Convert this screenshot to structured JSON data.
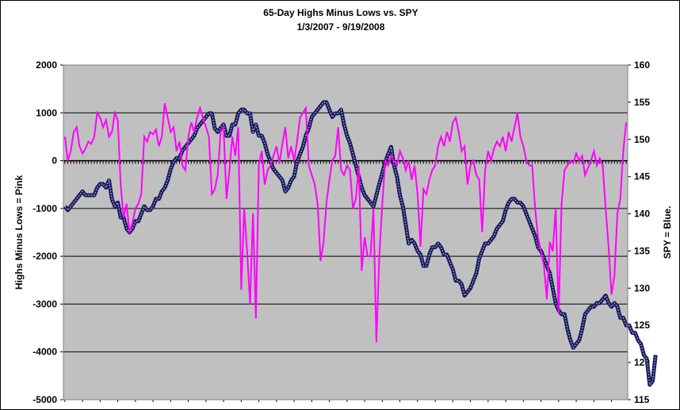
{
  "chart_data": {
    "type": "line",
    "title": "65-Day Highs Minus Lows vs. SPY",
    "subtitle": "1/3/2007 - 9/19/2008",
    "ylabel_left": "Highs Minus Lows = Pink",
    "ylabel_right": "SPY = Blue.",
    "ylim_left": [
      -5000,
      2000
    ],
    "ylim_right": [
      115,
      160
    ],
    "yticks_left": [
      "2000",
      "1000",
      "0",
      "-1000",
      "-2000",
      "-3000",
      "-4000",
      "-5000"
    ],
    "yticks_right": [
      "160",
      "155",
      "150",
      "145",
      "140",
      "135",
      "130",
      "125",
      "120",
      "115"
    ],
    "x_start": "1/3/2007",
    "x_end": "9/19/2008",
    "grid": true,
    "plot_background": "#c0c0c0",
    "series": [
      {
        "axis": "left",
        "color": "#ff00ff",
        "values": [
          500,
          0,
          200,
          600,
          700,
          300,
          150,
          250,
          400,
          350,
          500,
          1000,
          900,
          700,
          850,
          500,
          600,
          1000,
          850,
          -500,
          -1200,
          -900,
          -1500,
          -1300,
          -1000,
          -900,
          -700,
          500,
          400,
          600,
          550,
          650,
          300,
          500,
          1200,
          900,
          600,
          700,
          200,
          400,
          -100,
          -200,
          500,
          800,
          600,
          900,
          1100,
          900,
          700,
          500,
          -700,
          -600,
          -300,
          600,
          700,
          -800,
          -200,
          500,
          100,
          700,
          -2700,
          -1000,
          -1900,
          -3000,
          -1100,
          -3300,
          -100,
          200,
          -500,
          -200,
          -100,
          100,
          300,
          -50,
          350,
          700,
          50,
          300,
          0,
          400,
          900,
          1000,
          1100,
          -100,
          -300,
          -500,
          -900,
          -2100,
          -1700,
          -900,
          -400,
          0,
          100,
          700,
          -200,
          -300,
          -100,
          -200,
          -1000,
          -800,
          -100,
          -2300,
          -1600,
          -2000,
          -2000,
          -1000,
          -3800,
          -2000,
          -900,
          0,
          -100,
          100,
          0,
          -100,
          200,
          50,
          -200,
          0,
          -400,
          -100,
          -700,
          -1800,
          -600,
          -700,
          -400,
          -200,
          -100,
          300,
          500,
          300,
          600,
          400,
          800,
          900,
          600,
          200,
          300,
          -500,
          -100,
          0,
          -300,
          -400,
          -1500,
          -200,
          200,
          0,
          250,
          400,
          300,
          500,
          200,
          600,
          400,
          700,
          1000,
          500,
          300,
          0,
          -100,
          -100,
          -1000,
          -1600,
          -1900,
          -2200,
          -2900,
          -1700,
          -1900,
          -1000,
          -3200,
          -900,
          -200,
          -100,
          0,
          -50,
          150,
          0,
          100,
          -300,
          -150,
          0,
          200,
          -100,
          50,
          -100,
          -1000,
          -1800,
          -2800,
          -2400,
          -1100,
          -800,
          200,
          800
        ],
        "name": ""
      },
      {
        "axis": "right",
        "color": "#1a1a5e",
        "values": [
          141,
          140.5,
          141,
          141.5,
          142,
          142.5,
          143,
          142.5,
          142.5,
          142.5,
          142.5,
          143.5,
          144,
          144,
          143.5,
          144.5,
          142,
          141,
          141.5,
          139.5,
          139.5,
          138,
          137.5,
          138,
          139,
          139,
          140,
          141,
          140.5,
          140.5,
          141,
          142,
          142,
          143,
          143.5,
          144.5,
          146,
          147,
          147.5,
          147.5,
          148.5,
          149,
          149.5,
          150,
          150.5,
          151.5,
          152,
          152.5,
          153,
          153.5,
          153.5,
          151.5,
          151,
          151.5,
          152,
          150.5,
          150.5,
          152,
          152,
          153.5,
          154,
          154,
          153.5,
          153.5,
          151,
          152,
          150.5,
          150.5,
          149.5,
          148,
          147,
          146,
          145.5,
          145,
          144.5,
          143,
          143.5,
          144.5,
          145,
          147,
          148,
          149,
          150.5,
          151.5,
          153,
          153.5,
          154,
          154.5,
          155,
          155,
          154,
          153,
          153.5,
          153.5,
          154,
          152,
          150.5,
          149.5,
          148,
          146.5,
          145,
          143.5,
          142.5,
          142,
          141.5,
          141,
          142.5,
          144,
          145.5,
          147,
          148,
          149,
          146.5,
          145,
          142.5,
          141,
          138.5,
          136,
          136.5,
          136,
          135,
          134.5,
          133,
          133,
          134.5,
          135.5,
          135.5,
          136,
          135.5,
          134.5,
          134.5,
          133.5,
          132.5,
          131,
          131,
          130.5,
          129,
          129.5,
          130,
          131,
          132,
          134,
          135,
          136,
          136,
          136.5,
          137,
          138,
          138.5,
          139,
          140.5,
          141.5,
          142,
          142,
          141.5,
          141.5,
          141,
          140,
          139,
          138,
          137,
          135.5,
          135,
          134,
          133,
          132,
          130,
          128,
          127,
          126.5,
          126.5,
          124.5,
          123,
          122,
          122.5,
          123,
          124.5,
          126.5,
          127,
          127.5,
          127.5,
          128,
          128,
          128.5,
          129,
          128,
          127.5,
          128,
          127.5,
          126,
          126,
          125,
          125,
          124,
          124,
          123,
          122.5,
          121,
          120.5,
          117,
          117.5,
          121
        ],
        "name": ""
      }
    ]
  }
}
